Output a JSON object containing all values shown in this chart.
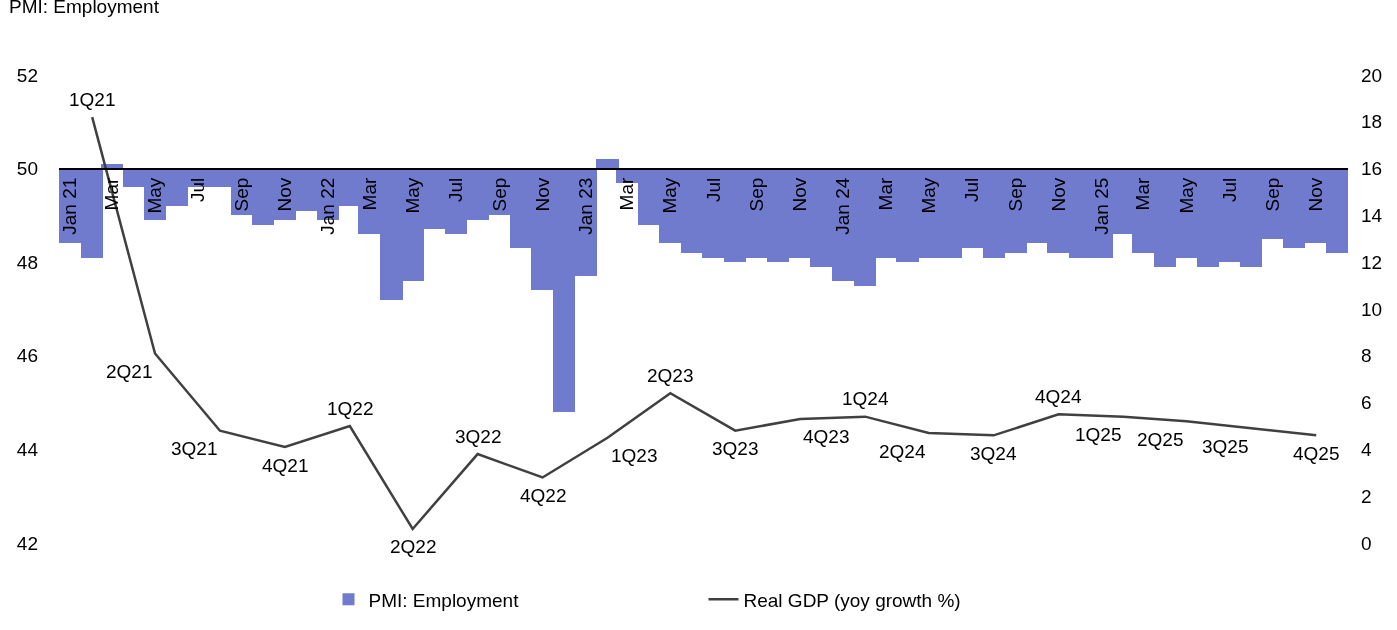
{
  "chart_data": {
    "type": "bar",
    "ylabel": "PMI: Employment",
    "legend": "bottom",
    "x": [
      "2021-01",
      "2021-02",
      "2021-03",
      "2021-04",
      "2021-05",
      "2021-06",
      "2021-07",
      "2021-08",
      "2021-09",
      "2021-10",
      "2021-11",
      "2021-12",
      "2022-01",
      "2022-02",
      "2022-03",
      "2022-04",
      "2022-05",
      "2022-06",
      "2022-07",
      "2022-08",
      "2022-09",
      "2022-10",
      "2022-11",
      "2022-12",
      "2023-01",
      "2023-02",
      "2023-03",
      "2023-04",
      "2023-05",
      "2023-06",
      "2023-07",
      "2023-08",
      "2023-09",
      "2023-10",
      "2023-11",
      "2023-12",
      "2024-01",
      "2024-02",
      "2024-03",
      "2024-04",
      "2024-05",
      "2024-06",
      "2024-07",
      "2024-08",
      "2024-09",
      "2024-10",
      "2024-11",
      "2024-12",
      "2025-01",
      "2025-02",
      "2025-03",
      "2025-04",
      "2025-05",
      "2025-06",
      "2025-07",
      "2025-08",
      "2025-09",
      "2025-10",
      "2025-11",
      "2025-12"
    ],
    "series": [
      {
        "name": "PMI: Employment",
        "color": "#707bcd",
        "base": [
          50,
          50,
          50,
          50,
          50,
          50,
          50,
          50,
          50,
          50,
          50,
          50,
          50,
          50,
          50,
          50,
          50,
          50,
          50,
          50,
          50,
          50,
          50,
          50,
          50,
          50,
          50,
          50,
          50,
          50,
          50,
          50,
          50,
          50,
          50,
          50,
          50,
          50,
          50,
          50,
          50,
          50,
          50,
          50,
          50,
          50,
          50,
          50,
          50,
          50,
          50,
          50,
          50,
          50,
          50,
          50,
          50,
          50,
          50,
          50
        ],
        "values": [
          -1.6,
          -1.9,
          0.1,
          -0.4,
          -1.1,
          -0.8,
          -0.4,
          -0.4,
          -1.0,
          -1.2,
          -1.1,
          -0.9,
          -1.1,
          -0.8,
          -1.4,
          -2.8,
          -2.4,
          -1.3,
          -1.4,
          -1.1,
          -1.0,
          -1.7,
          -2.6,
          -5.2,
          -2.3,
          0.2,
          -0.3,
          -1.2,
          -1.6,
          -1.8,
          -1.9,
          -2.0,
          -1.9,
          -2.0,
          -1.9,
          -2.1,
          -2.4,
          -2.5,
          -1.9,
          -2.0,
          -1.9,
          -1.9,
          -1.7,
          -1.9,
          -1.8,
          -1.6,
          -1.8,
          -1.9,
          -1.9,
          -1.4,
          -1.8,
          -2.1,
          -1.9,
          -2.1,
          -2.0,
          -2.1,
          -1.5,
          -1.7,
          -1.6,
          -1.8
        ]
      },
      {
        "name": "Real GDP (yoy growth %)",
        "type": "line",
        "axis": "y2",
        "color": "#404040",
        "x": [
          "2021-02",
          "2021-05",
          "2021-08",
          "2021-11",
          "2022-02",
          "2022-05",
          "2022-08",
          "2022-11",
          "2023-02",
          "2023-05",
          "2023-08",
          "2023-11",
          "2024-02",
          "2024-05",
          "2024-08",
          "2024-11",
          "2025-02",
          "2025-05",
          "2025-08",
          "2025-11"
        ],
        "values": [
          18.2,
          8.1,
          4.8,
          4.1,
          5.0,
          0.6,
          3.8,
          2.8,
          4.5,
          6.4,
          4.8,
          5.3,
          5.4,
          4.7,
          4.6,
          5.5,
          5.4,
          5.2,
          4.9,
          4.6
        ]
      }
    ],
    "annotations": [
      "1Q21",
      "2Q21",
      "3Q21",
      "4Q21",
      "1Q22",
      "2Q22",
      "3Q22",
      "4Q22",
      "1Q23",
      "2Q23",
      "3Q23",
      "4Q23",
      "1Q24",
      "2Q24",
      "3Q24",
      "4Q24",
      "1Q25",
      "2Q25",
      "3Q25",
      "4Q25"
    ],
    "xlim": [
      "2020-12-16",
      "2025-12-16"
    ],
    "xticks": [
      {
        "value": "2021-01",
        "label": "Jan 21"
      },
      {
        "value": "2021-03",
        "label": "Mar"
      },
      {
        "value": "2021-05",
        "label": "May"
      },
      {
        "value": "2021-07",
        "label": "Jul"
      },
      {
        "value": "2021-09",
        "label": "Sep"
      },
      {
        "value": "2021-11",
        "label": "Nov"
      },
      {
        "value": "2022-01",
        "label": "Jan 22"
      },
      {
        "value": "2022-03",
        "label": "Mar"
      },
      {
        "value": "2022-05",
        "label": "May"
      },
      {
        "value": "2022-07",
        "label": "Jul"
      },
      {
        "value": "2022-09",
        "label": "Sep"
      },
      {
        "value": "2022-11",
        "label": "Nov"
      },
      {
        "value": "2023-01",
        "label": "Jan 23"
      },
      {
        "value": "2023-03",
        "label": "Mar"
      },
      {
        "value": "2023-05",
        "label": "May"
      },
      {
        "value": "2023-07",
        "label": "Jul"
      },
      {
        "value": "2023-09",
        "label": "Sep"
      },
      {
        "value": "2023-11",
        "label": "Nov"
      },
      {
        "value": "2024-01",
        "label": "Jan 24"
      },
      {
        "value": "2024-03",
        "label": "Mar"
      },
      {
        "value": "2024-05",
        "label": "May"
      },
      {
        "value": "2024-07",
        "label": "Jul"
      },
      {
        "value": "2024-09",
        "label": "Sep"
      },
      {
        "value": "2024-11",
        "label": "Nov"
      },
      {
        "value": "2025-01",
        "label": "Jan 25"
      },
      {
        "value": "2025-03",
        "label": "Mar"
      },
      {
        "value": "2025-05",
        "label": "May"
      },
      {
        "value": "2025-07",
        "label": "Jul"
      },
      {
        "value": "2025-09",
        "label": "Sep"
      },
      {
        "value": "2025-11",
        "label": "Nov"
      }
    ],
    "ylim": [
      42,
      52
    ],
    "yticks": [
      42,
      44,
      46,
      48,
      50,
      52
    ],
    "y2lim": [
      0,
      20
    ],
    "y2ticks": [
      0,
      2,
      4,
      6,
      8,
      10,
      12,
      14,
      16,
      18,
      20
    ]
  }
}
